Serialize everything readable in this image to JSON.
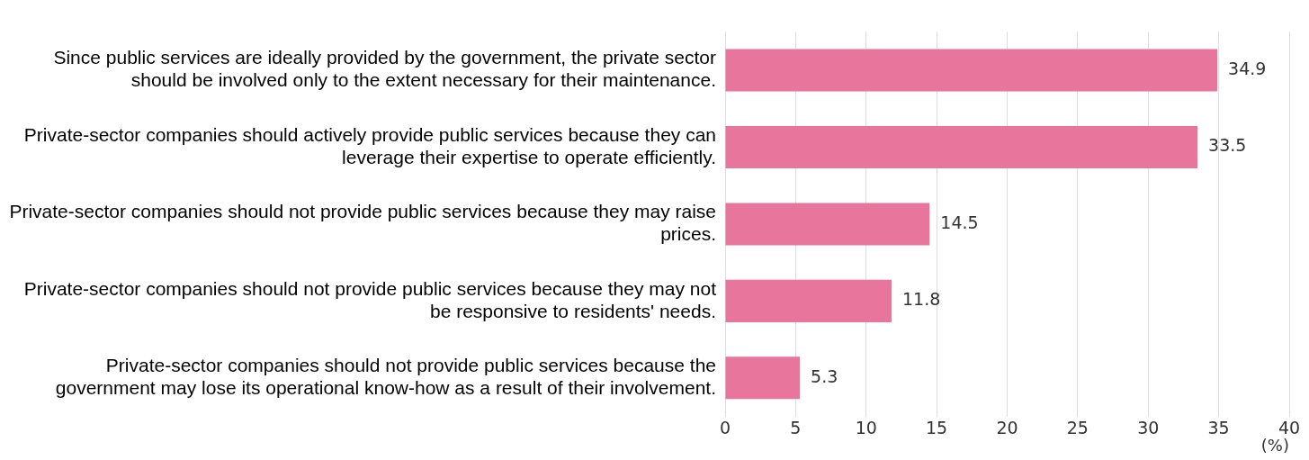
{
  "chart_data": {
    "type": "bar",
    "orientation": "horizontal",
    "categories": [
      "Since public services are ideally provided by the government, the private sector should be involved only to the extent necessary for their maintenance.",
      "Private-sector companies should actively provide public services because they can leverage their expertise to operate efficiently.",
      "Private-sector companies should not provide public services because they may raise prices.",
      "Private-sector companies should not provide public services because they may not be responsive to residents' needs.",
      "Private-sector companies should not provide public services because the government may lose its operational know-how as a result of their involvement."
    ],
    "values": [
      34.9,
      33.5,
      14.5,
      11.8,
      5.3
    ],
    "color": "#e8769c",
    "xlim": [
      0,
      40
    ],
    "xticks": [
      0,
      5,
      10,
      15,
      20,
      25,
      30,
      35,
      40
    ],
    "xlabel": "(%)",
    "grid": "x",
    "data_labels": true,
    "legend": false
  }
}
